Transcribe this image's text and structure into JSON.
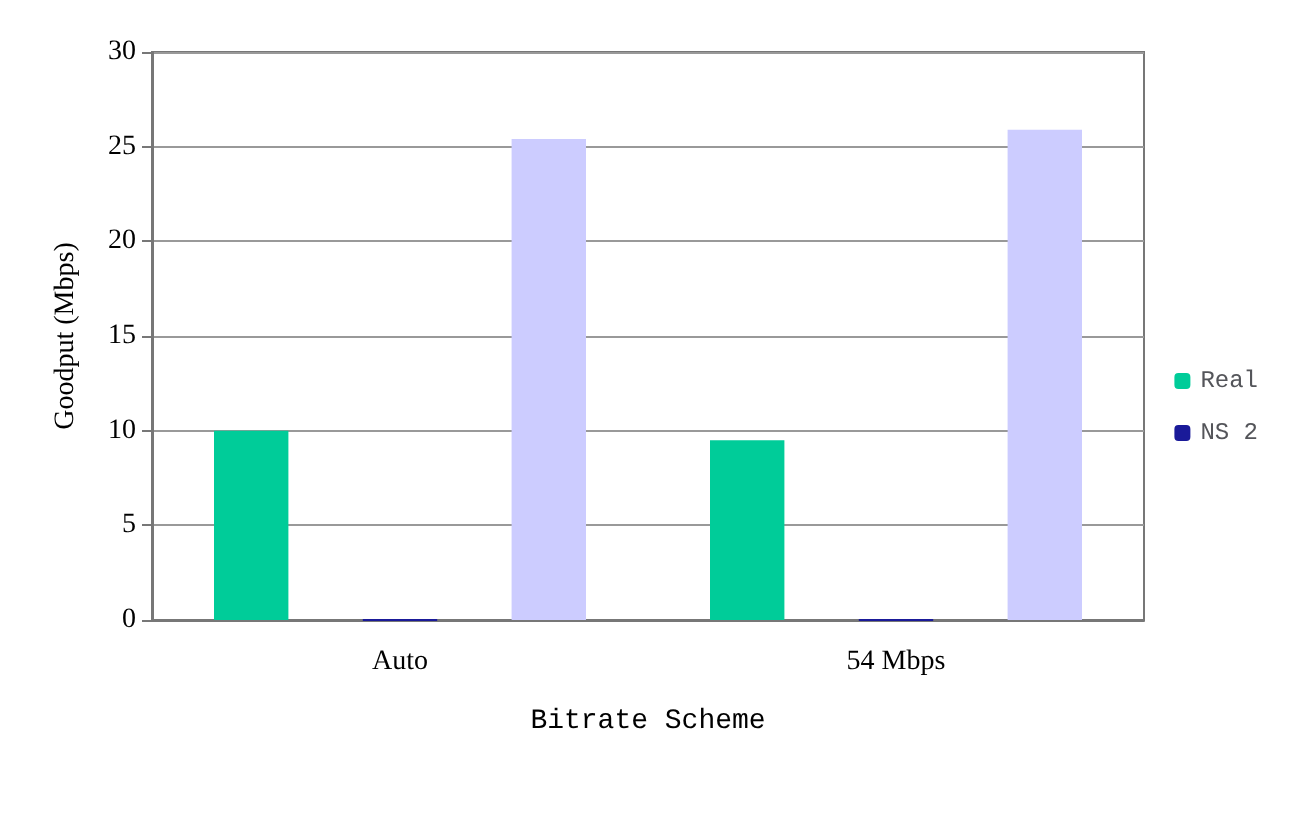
{
  "chart_data": {
    "type": "bar",
    "xlabel": "Bitrate Scheme",
    "ylabel": "Goodput (Mbps)",
    "categories": [
      "Auto",
      "54 Mbps"
    ],
    "series": [
      {
        "name": "Real",
        "color": "#00cc99",
        "values": [
          10,
          9.5
        ]
      },
      {
        "name": "NS 2",
        "color": "#1a1a99",
        "values": [
          0,
          0
        ]
      },
      {
        "color": "#ccccff",
        "values": [
          25.4,
          25.9
        ]
      }
    ],
    "ylim": [
      0,
      30
    ],
    "yticks": [
      0,
      5,
      10,
      15,
      20,
      25,
      30
    ],
    "grid": "y",
    "legend": "right"
  }
}
